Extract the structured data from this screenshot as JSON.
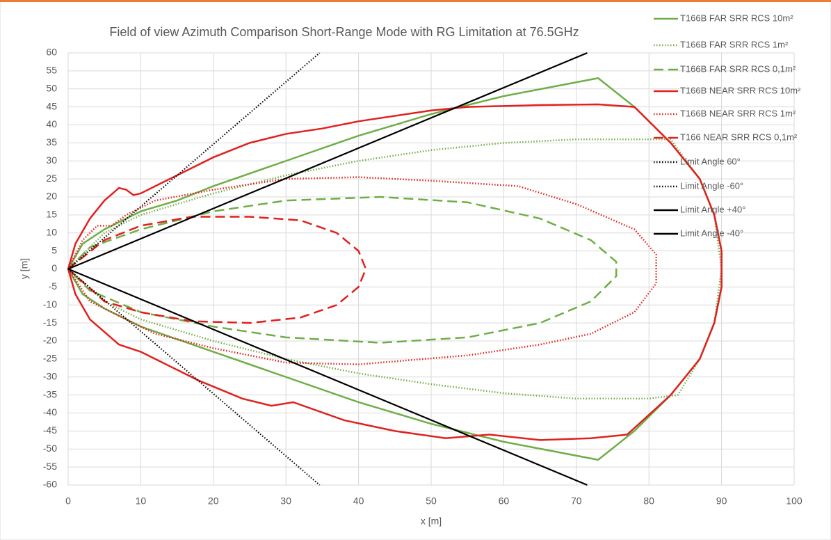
{
  "chart_data": {
    "type": "line",
    "title": "Field of view Azimuth Comparison Short-Range Mode with RG Limitation at 76.5GHz",
    "x_label": "x [m]",
    "y_label": "y [m]",
    "xlim": [
      0,
      100
    ],
    "ylim": [
      -60,
      60
    ],
    "xticks": [
      0,
      10,
      20,
      30,
      40,
      50,
      60,
      70,
      80,
      90,
      100
    ],
    "yticks": [
      -60,
      -55,
      -50,
      -45,
      -40,
      -35,
      -30,
      -25,
      -20,
      -15,
      -10,
      -5,
      0,
      5,
      10,
      15,
      20,
      25,
      30,
      35,
      40,
      45,
      50,
      55,
      60
    ],
    "grid": true,
    "legend": "right",
    "series": [
      {
        "name": "T166B FAR SRR RCS 10m²",
        "color": "#70ad47",
        "style": "solid",
        "x": [
          0,
          2,
          5,
          10,
          15,
          20,
          30,
          40,
          50,
          60,
          73,
          78,
          83,
          87,
          89,
          90,
          90,
          90,
          89,
          87,
          83,
          78,
          73,
          60,
          50,
          40,
          30,
          20,
          10,
          5,
          2,
          0
        ],
        "values": [
          0,
          7,
          11,
          16,
          19,
          23,
          30,
          37,
          43,
          48,
          53,
          45,
          35,
          25,
          15,
          5,
          0,
          -5,
          -15,
          -25,
          -35,
          -45,
          -53,
          -48,
          -43,
          -37,
          -30,
          -23,
          -16,
          -11,
          -7,
          0
        ]
      },
      {
        "name": "T166B FAR SRR RCS 1m²",
        "color": "#70ad47",
        "style": "dotted",
        "x": [
          0,
          5,
          10,
          20,
          30,
          40,
          50,
          60,
          70,
          83,
          87,
          89,
          90,
          89,
          87,
          84,
          80,
          70,
          60,
          50,
          40,
          30,
          20,
          10,
          5,
          0
        ],
        "values": [
          0,
          10,
          15,
          21,
          26,
          30,
          33,
          35,
          36,
          36,
          25,
          15,
          0,
          -15,
          -25,
          -35,
          -36,
          -36,
          -34.5,
          -32,
          -29,
          -25,
          -20,
          -14,
          -9,
          0
        ]
      },
      {
        "name": "T166B FAR SRR RCS 0,1m²",
        "color": "#70ad47",
        "style": "dashed",
        "x": [
          0,
          3,
          10,
          20,
          30,
          43,
          55,
          65,
          72,
          75.5,
          75.5,
          72,
          65,
          55,
          43,
          30,
          20,
          10,
          3,
          0
        ],
        "values": [
          0,
          6,
          11,
          16,
          19,
          20,
          18.5,
          14,
          8,
          2,
          -2,
          -9,
          -15,
          -19,
          -20.5,
          -19,
          -16,
          -12,
          -6,
          0
        ]
      },
      {
        "name": "T166B NEAR SRR RCS 10m²",
        "color": "#e0211f",
        "style": "solid",
        "x": [
          0,
          1,
          3,
          5,
          7,
          8,
          9,
          10,
          13,
          20,
          25,
          30,
          35,
          40,
          50,
          55,
          65,
          73,
          78,
          83,
          87,
          89,
          90,
          90,
          89,
          87,
          83,
          77,
          72,
          65,
          58,
          52,
          45,
          38,
          31,
          28,
          24,
          18,
          15,
          10,
          7,
          3,
          1,
          0
        ],
        "values": [
          0,
          7,
          14,
          19,
          22.5,
          22,
          20.5,
          21,
          24,
          31,
          35,
          37.5,
          39,
          41,
          44,
          45,
          45.5,
          45.7,
          45,
          35,
          25,
          15,
          5,
          -5,
          -15,
          -25,
          -35,
          -46,
          -47,
          -47.5,
          -46,
          -47,
          -45,
          -42,
          -37,
          -38,
          -36,
          -31,
          -28,
          -23,
          -21,
          -14,
          -7,
          0
        ]
      },
      {
        "name": "T166B NEAR SRR RCS 1m²",
        "color": "#e0211f",
        "style": "dotted",
        "x": [
          0,
          2,
          4,
          6,
          8,
          12,
          20,
          30,
          40,
          50,
          62,
          70,
          78,
          81,
          81,
          78,
          72,
          65,
          55,
          40,
          30,
          20,
          12,
          6,
          3,
          0
        ],
        "values": [
          0,
          8,
          12,
          12,
          15,
          19,
          22,
          25,
          25.5,
          24.5,
          23,
          18,
          11,
          4,
          -4,
          -12,
          -18,
          -21,
          -24,
          -26.5,
          -26,
          -22,
          -18,
          -12,
          -9,
          0
        ]
      },
      {
        "name": "T166 NEAR SRR RCS 0,1m²",
        "color": "#e0211f",
        "style": "dashed",
        "x": [
          0,
          5,
          10,
          17,
          25,
          32,
          37,
          40,
          41,
          40,
          37,
          32,
          25,
          17,
          10,
          5,
          0
        ],
        "values": [
          0,
          8,
          12,
          14.5,
          14.5,
          13.5,
          10,
          5,
          0,
          -5,
          -10,
          -13.5,
          -15,
          -14.5,
          -12,
          -9,
          0
        ]
      },
      {
        "name": "Limit Angle 60°",
        "color": "#000000",
        "style": "dotted",
        "x": [
          0,
          34.64
        ],
        "values": [
          0,
          60
        ]
      },
      {
        "name": "Limit Angle -60°",
        "color": "#000000",
        "style": "dotted",
        "x": [
          0,
          34.64
        ],
        "values": [
          0,
          -60
        ]
      },
      {
        "name": "Limit Angle +40°",
        "color": "#000000",
        "style": "solid",
        "x": [
          0,
          71.5
        ],
        "values": [
          0,
          60
        ]
      },
      {
        "name": "Limit Angle -40°",
        "color": "#000000",
        "style": "solid",
        "x": [
          0,
          71.5
        ],
        "values": [
          0,
          -60
        ]
      }
    ]
  }
}
